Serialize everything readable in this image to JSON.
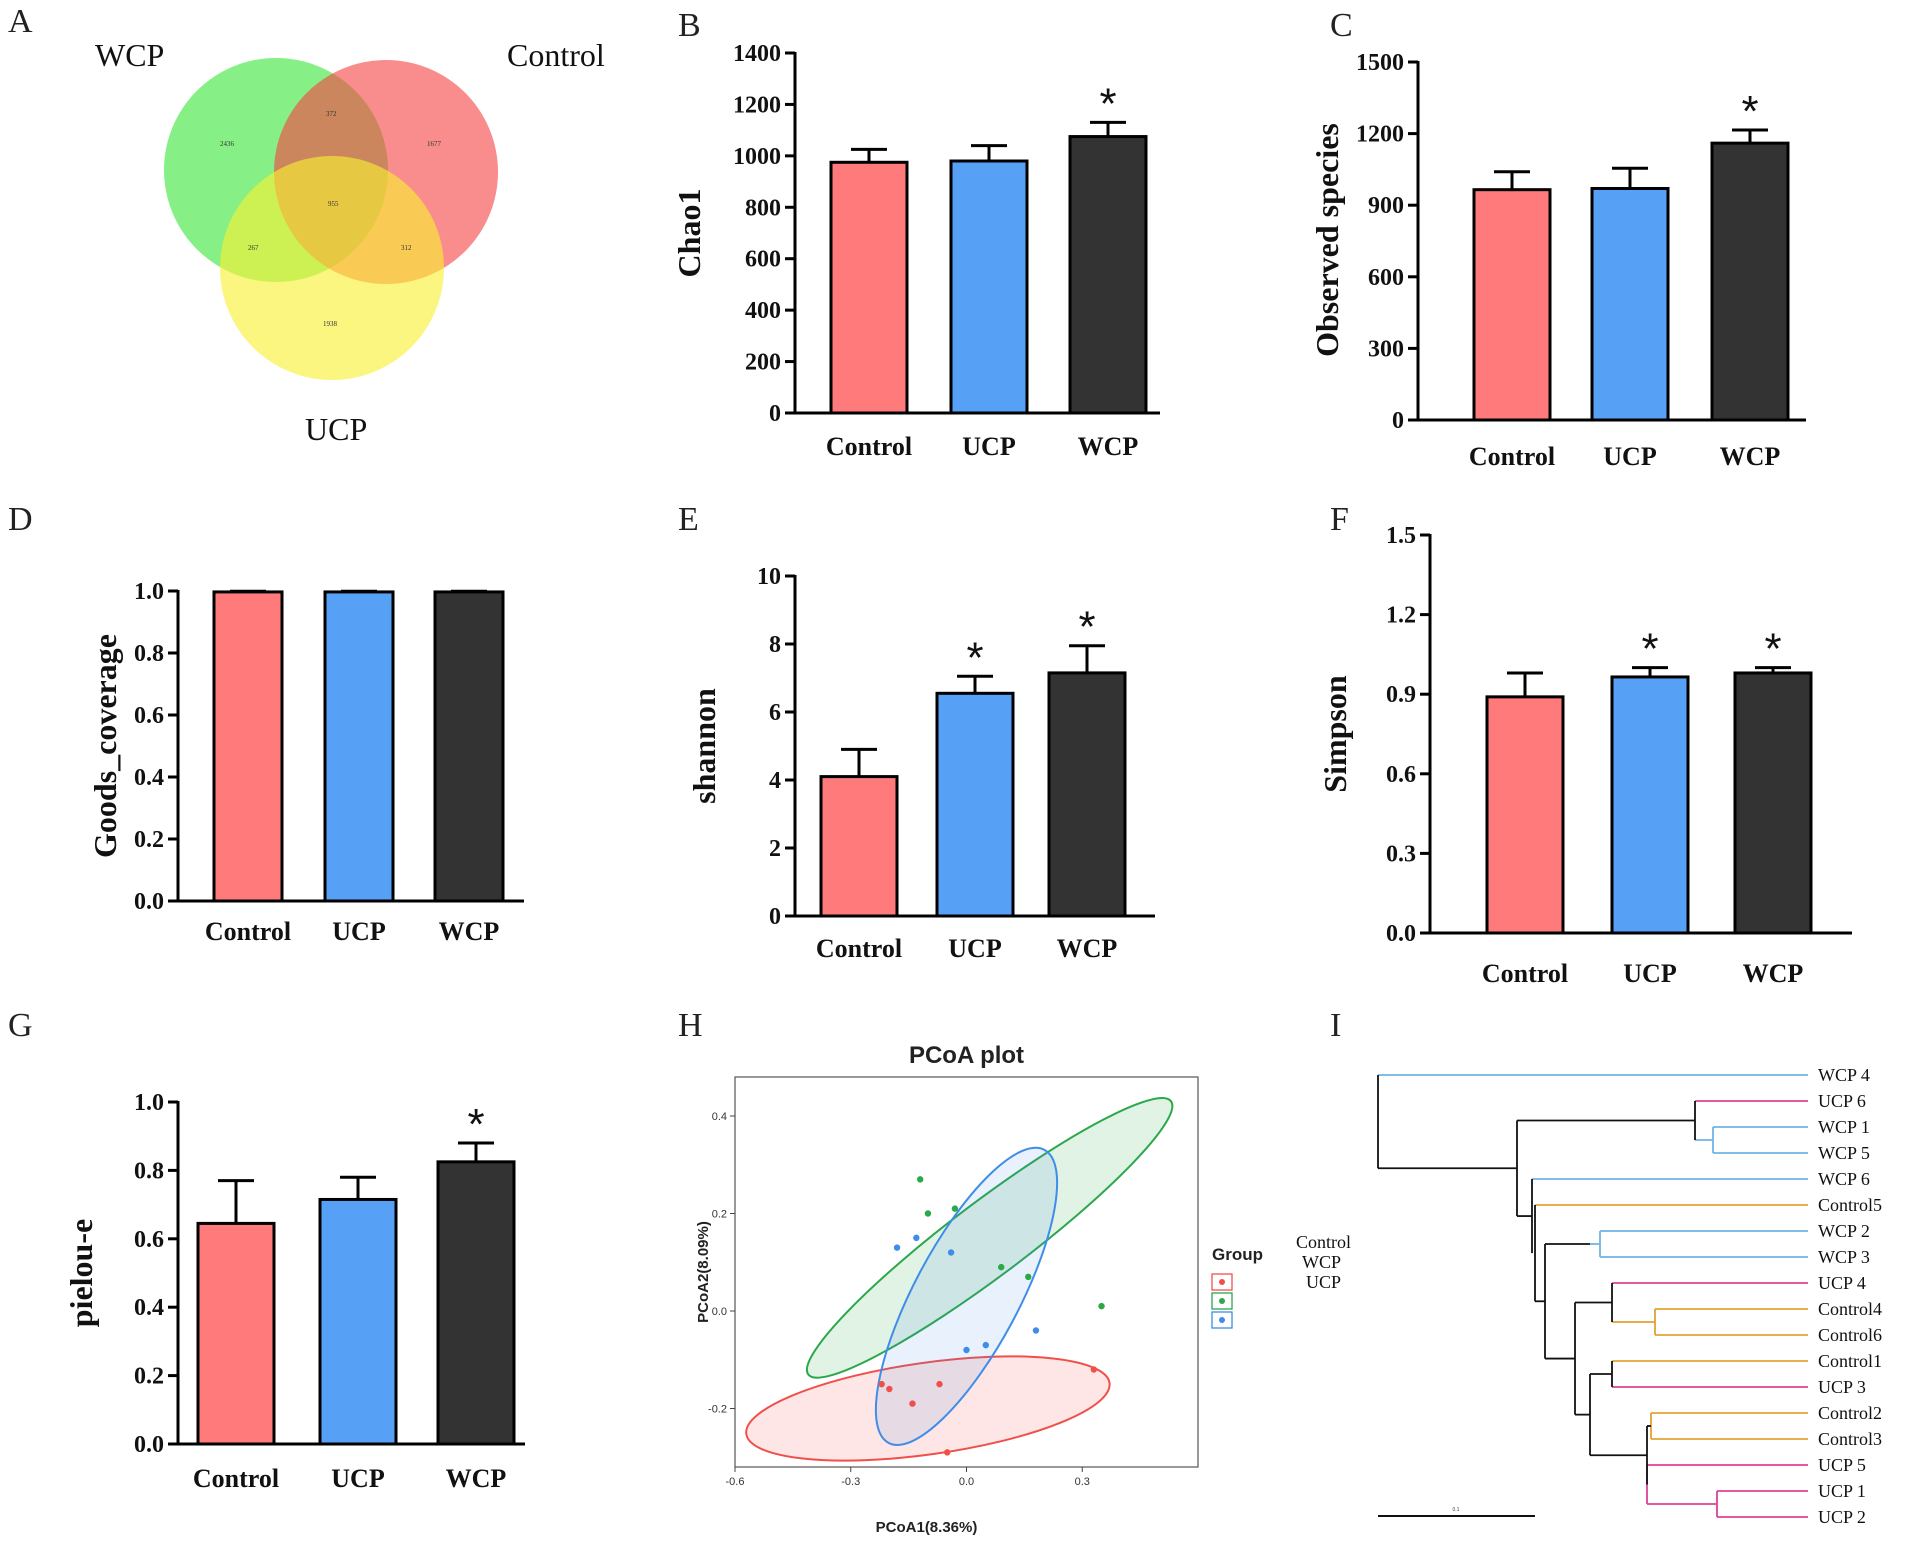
{
  "colors": {
    "Control": "#ff7a7a",
    "UCP": "#56a1f5",
    "WCP": "#333333"
  },
  "panels": {
    "A": {
      "letter": "A"
    },
    "B": {
      "letter": "B"
    },
    "C": {
      "letter": "C"
    },
    "D": {
      "letter": "D"
    },
    "E": {
      "letter": "E"
    },
    "F": {
      "letter": "F"
    },
    "G": {
      "letter": "G"
    },
    "H": {
      "letter": "H"
    },
    "I": {
      "letter": "I"
    }
  },
  "venn": {
    "sets": {
      "WCP": "WCP",
      "Control": "Control",
      "UCP": "UCP"
    },
    "counts": {
      "wcp_only": "2436",
      "wcp_control": "372",
      "control_only": "1677",
      "all": "955",
      "wcp_ucp": "267",
      "control_ucp": "312",
      "ucp_only": "1938"
    }
  },
  "chart_data": [
    {
      "id": "B",
      "type": "bar",
      "title": "",
      "xlabel": "",
      "ylabel": "Chao1",
      "categories": [
        "Control",
        "UCP",
        "WCP"
      ],
      "values": [
        975,
        980,
        1075
      ],
      "errors": [
        50,
        60,
        55
      ],
      "significance": [
        "",
        "",
        "*"
      ],
      "ylim": [
        0,
        1400
      ],
      "yticks": [
        0,
        200,
        400,
        600,
        800,
        1000,
        1200,
        1400
      ],
      "ytick_labels": [
        "0",
        "200",
        "400",
        "600",
        "800",
        "1000",
        "1200",
        "1400"
      ]
    },
    {
      "id": "C",
      "type": "bar",
      "title": "",
      "xlabel": "",
      "ylabel": "Observed species",
      "categories": [
        "Control",
        "UCP",
        "WCP"
      ],
      "values": [
        965,
        970,
        1160
      ],
      "errors": [
        75,
        85,
        55
      ],
      "significance": [
        "",
        "",
        "*"
      ],
      "ylim": [
        0,
        1500
      ],
      "yticks": [
        0,
        300,
        600,
        900,
        1200,
        1500
      ],
      "ytick_labels": [
        "0",
        "300",
        "600",
        "900",
        "1200",
        "1500"
      ]
    },
    {
      "id": "D",
      "type": "bar",
      "title": "",
      "xlabel": "",
      "ylabel": "Goods_coverage",
      "categories": [
        "Control",
        "UCP",
        "WCP"
      ],
      "values": [
        0.997,
        0.997,
        0.997
      ],
      "errors": [
        0.002,
        0.002,
        0.002
      ],
      "significance": [
        "",
        "",
        ""
      ],
      "ylim": [
        0,
        1.0
      ],
      "yticks": [
        0,
        0.2,
        0.4,
        0.6,
        0.8,
        1.0
      ],
      "ytick_labels": [
        "0.0",
        "0.2",
        "0.4",
        "0.6",
        "0.8",
        "1.0"
      ]
    },
    {
      "id": "E",
      "type": "bar",
      "title": "",
      "xlabel": "",
      "ylabel": "shannon",
      "categories": [
        "Control",
        "UCP",
        "WCP"
      ],
      "values": [
        4.1,
        6.55,
        7.15
      ],
      "errors": [
        0.8,
        0.5,
        0.8
      ],
      "significance": [
        "",
        "*",
        "*"
      ],
      "ylim": [
        0,
        10
      ],
      "yticks": [
        0,
        2,
        4,
        6,
        8,
        10
      ],
      "ytick_labels": [
        "0",
        "2",
        "4",
        "6",
        "8",
        "10"
      ]
    },
    {
      "id": "F",
      "type": "bar",
      "title": "",
      "xlabel": "",
      "ylabel": "Simpson",
      "categories": [
        "Control",
        "UCP",
        "WCP"
      ],
      "values": [
        0.89,
        0.965,
        0.98
      ],
      "errors": [
        0.09,
        0.035,
        0.02
      ],
      "significance": [
        "",
        "*",
        "*"
      ],
      "ylim": [
        0,
        1.5
      ],
      "yticks": [
        0,
        0.3,
        0.6,
        0.9,
        1.2,
        1.5
      ],
      "ytick_labels": [
        "0.0",
        "0.3",
        "0.6",
        "0.9",
        "1.2",
        "1.5"
      ]
    },
    {
      "id": "G",
      "type": "bar",
      "title": "",
      "xlabel": "",
      "ylabel": "pielou-e",
      "categories": [
        "Control",
        "UCP",
        "WCP"
      ],
      "values": [
        0.645,
        0.715,
        0.825
      ],
      "errors": [
        0.125,
        0.065,
        0.055
      ],
      "significance": [
        "",
        "",
        "*"
      ],
      "ylim": [
        0,
        1.0
      ],
      "yticks": [
        0,
        0.2,
        0.4,
        0.6,
        0.8,
        1.0
      ],
      "ytick_labels": [
        "0.0",
        "0.2",
        "0.4",
        "0.6",
        "0.8",
        "1.0"
      ]
    },
    {
      "id": "H",
      "type": "scatter",
      "title": "PCoA plot",
      "xlabel": "PCoA1(8.36%)",
      "ylabel": "PCoA2(8.09%)",
      "xlim": [
        -0.6,
        0.6
      ],
      "ylim": [
        -0.32,
        0.48
      ],
      "xticks": [
        -0.6,
        -0.3,
        0.0,
        0.3
      ],
      "xtick_labels": [
        "-0.6",
        "-0.3",
        "0.0",
        "0.3"
      ],
      "yticks": [
        -0.2,
        0.0,
        0.2,
        0.4
      ],
      "ytick_labels": [
        "-0.2",
        "0.0",
        "0.2",
        "0.4"
      ],
      "legend_title": "Group",
      "series": [
        {
          "name": "Control",
          "color": "#f0504a",
          "points": [
            [
              -0.22,
              -0.15
            ],
            [
              -0.2,
              -0.16
            ],
            [
              -0.14,
              -0.19
            ],
            [
              -0.07,
              -0.15
            ],
            [
              -0.05,
              -0.29
            ],
            [
              0.33,
              -0.12
            ]
          ],
          "ellipse": {
            "cx": -0.1,
            "cy": -0.2,
            "rx": 0.42,
            "ry": 0.105,
            "angle_deg": -8
          }
        },
        {
          "name": "WCP",
          "color": "#2aa84a",
          "points": [
            [
              -0.12,
              0.27
            ],
            [
              -0.1,
              0.2
            ],
            [
              -0.03,
              0.21
            ],
            [
              0.09,
              0.09
            ],
            [
              0.16,
              0.07
            ],
            [
              0.35,
              0.01
            ]
          ],
          "ellipse": {
            "cx": 0.06,
            "cy": 0.15,
            "rx": 0.52,
            "ry": 0.085,
            "angle_deg": -37
          }
        },
        {
          "name": "UCP",
          "color": "#3f8de8",
          "points": [
            [
              -0.18,
              0.13
            ],
            [
              -0.13,
              0.15
            ],
            [
              -0.04,
              0.12
            ],
            [
              0.18,
              -0.04
            ],
            [
              0.05,
              -0.07
            ],
            [
              0.0,
              -0.08
            ]
          ],
          "ellipse": {
            "cx": 0.0,
            "cy": 0.03,
            "rx": 0.38,
            "ry": 0.12,
            "angle_deg": -62
          }
        }
      ]
    },
    {
      "id": "I",
      "type": "dendrogram",
      "title": "",
      "leaves": [
        {
          "label": "WCP 4",
          "group": "WCP"
        },
        {
          "label": "UCP 6",
          "group": "UCP"
        },
        {
          "label": "WCP 1",
          "group": "WCP"
        },
        {
          "label": "WCP 5",
          "group": "WCP"
        },
        {
          "label": "WCP 6",
          "group": "WCP"
        },
        {
          "label": "Control5",
          "group": "Control"
        },
        {
          "label": "WCP 2",
          "group": "WCP"
        },
        {
          "label": "WCP 3",
          "group": "WCP"
        },
        {
          "label": "UCP 4",
          "group": "UCP"
        },
        {
          "label": "Control4",
          "group": "Control"
        },
        {
          "label": "Control6",
          "group": "Control"
        },
        {
          "label": "Control1",
          "group": "Control"
        },
        {
          "label": "UCP 3",
          "group": "UCP"
        },
        {
          "label": "Control2",
          "group": "Control"
        },
        {
          "label": "Control3",
          "group": "Control"
        },
        {
          "label": "UCP 5",
          "group": "UCP"
        },
        {
          "label": "UCP 1",
          "group": "UCP"
        },
        {
          "label": "UCP 2",
          "group": "UCP"
        }
      ],
      "group_colors": {
        "WCP": "#6fb4e3",
        "UCP": "#e0409a",
        "Control": "#e2a233"
      },
      "legend": [
        "Control",
        "WCP",
        "UCP"
      ],
      "scale_label": "0.1"
    }
  ]
}
